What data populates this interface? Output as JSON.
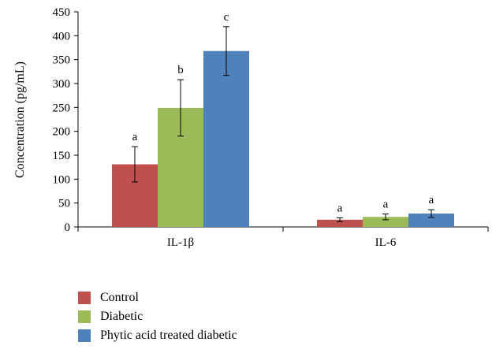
{
  "chart_data": {
    "type": "bar",
    "ylabel": "Concentration (pg/mL)",
    "ylim": [
      0,
      450
    ],
    "yticks": [
      0,
      50,
      100,
      150,
      200,
      250,
      300,
      350,
      400,
      450
    ],
    "categories": [
      "IL-1β",
      "IL-6"
    ],
    "series": [
      {
        "name": "Control",
        "color": "#c0504d",
        "values": [
          131,
          15
        ],
        "errors": [
          37,
          4
        ],
        "letters": [
          "a",
          "a"
        ]
      },
      {
        "name": "Diabetic",
        "color": "#9bbb59",
        "values": [
          249,
          21
        ],
        "errors": [
          59,
          6
        ],
        "letters": [
          "b",
          "a"
        ]
      },
      {
        "name": "Phytic acid treated diabetic",
        "color": "#4f81bd",
        "values": [
          368,
          28
        ],
        "errors": [
          51,
          8
        ],
        "letters": [
          "c",
          "a"
        ]
      }
    ],
    "grid": false,
    "legend_position": "bottom-left"
  }
}
